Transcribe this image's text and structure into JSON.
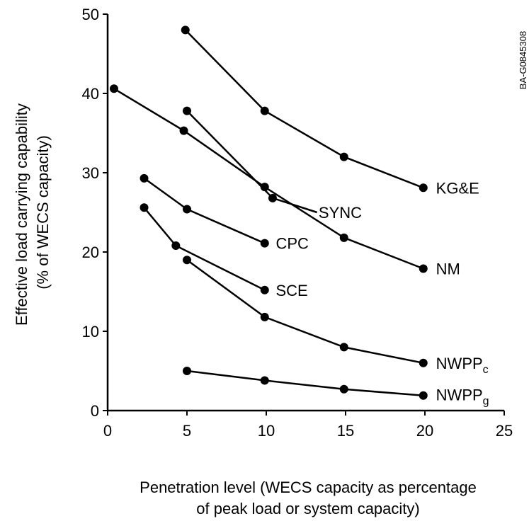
{
  "chart_data": {
    "type": "line",
    "xlabel_lines": [
      "Penetration level (WECS capacity as percentage",
      "of peak load or system capacity)"
    ],
    "ylabel_lines": [
      "Effective load carrying capability",
      "(% of WECS capacity)"
    ],
    "xlim": [
      0,
      25
    ],
    "ylim": [
      0,
      50
    ],
    "xticks": [
      0,
      5,
      10,
      15,
      20,
      25
    ],
    "yticks": [
      0,
      10,
      20,
      30,
      40,
      50
    ],
    "grid": false,
    "figure_id": "BA-G0845308",
    "series": [
      {
        "name": "KG&E",
        "x": [
          4.9,
          9.9,
          14.9,
          19.9
        ],
        "y": [
          48,
          37.8,
          32,
          28.1
        ]
      },
      {
        "name": "NM",
        "x": [
          0.4,
          4.8,
          9.9,
          14.9,
          19.9
        ],
        "y": [
          40.6,
          35.3,
          28.2,
          21.8,
          17.9
        ]
      },
      {
        "name": "SYNC",
        "x": [
          5.0,
          10.4,
          13.2
        ],
        "y": [
          37.8,
          26.8,
          25.0
        ]
      },
      {
        "name": "CPC",
        "x": [
          2.3,
          5.0,
          9.9
        ],
        "y": [
          29.3,
          25.4,
          21.1
        ]
      },
      {
        "name": "SCE",
        "x": [
          2.3,
          4.3,
          9.9
        ],
        "y": [
          25.6,
          20.8,
          15.2
        ]
      },
      {
        "name": "NWPPc",
        "x": [
          5.0,
          9.9,
          14.9,
          19.9
        ],
        "y": [
          19.0,
          11.8,
          8.0,
          6.0
        ]
      },
      {
        "name": "NWPPg",
        "x": [
          5.0,
          9.9,
          14.9,
          19.9
        ],
        "y": [
          5.0,
          3.8,
          2.7,
          1.9
        ]
      }
    ],
    "labels": [
      {
        "series": "KG&E",
        "text": "KG&E",
        "x": 20.7,
        "y": 28.1
      },
      {
        "series": "NM",
        "text": "NM",
        "x": 20.7,
        "y": 17.9
      },
      {
        "series": "SYNC",
        "text": "SYNC",
        "x": 13.3,
        "y": 25.0
      },
      {
        "series": "CPC",
        "text": "CPC",
        "x": 10.6,
        "y": 21.1
      },
      {
        "series": "SCE",
        "text": "SCE",
        "x": 10.6,
        "y": 15.2
      },
      {
        "series": "NWPPc",
        "text": "NWPP",
        "sub": "c",
        "x": 20.7,
        "y": 6.0
      },
      {
        "series": "NWPPg",
        "text": "NWPP",
        "sub": "g",
        "x": 20.7,
        "y": 2.0
      }
    ],
    "marker_points": {
      "SYNC": [
        0,
        1
      ],
      "SCE": [
        0,
        1,
        2
      ],
      "default": "all"
    }
  }
}
